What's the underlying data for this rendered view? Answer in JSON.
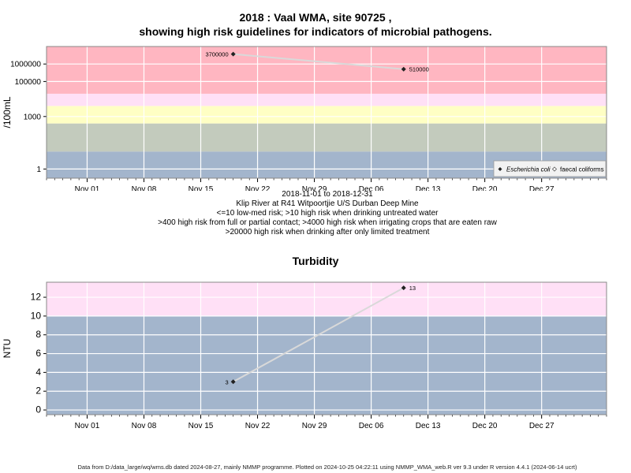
{
  "header": {
    "title_line1": "2018 : Vaal WMA, site 90725 ,",
    "title_line2": "showing high risk guidelines for indicators of microbial pathogens."
  },
  "info": {
    "date_range": "2018-11-01 to 2018-12-31",
    "site_name": "Klip River at R41 Witpoortjie U/S Durban Deep Mine",
    "guideline_1": "<=10 low-med risk; >10 high risk when drinking untreated water",
    "guideline_2": ">400 high risk from full or partial contact; >4000 high risk when irrigating crops that are eaten raw",
    "guideline_3": ">20000 high risk when drinking after only limited treatment"
  },
  "footer": {
    "text": "Data from D:/data_large/wq/wms.db dated 2024-08-27, mainly NMMP programme. Plotted on 2024-10-25 04:22:11 using NMMP_WMA_web.R ver 9.3 under R version 4.4.1 (2024-06-14 ucrt)"
  },
  "colors": {
    "band_red": "#ffb6c1",
    "band_pink": "#ffe0f6",
    "band_yellow": "#ffffc4",
    "band_sage": "#c3cbbd",
    "band_blue": "#a3b5cc",
    "grid": "#ffffff",
    "line": "#d9d9d9",
    "point": "#222222"
  },
  "chart_data": [
    {
      "type": "line",
      "ylabel": "/100mL",
      "y_scale": "log",
      "ylim": [
        0.3,
        10000000
      ],
      "xlim": [
        "2018-10-27",
        "2019-01-04"
      ],
      "x_tick_labels": [
        "Nov 01",
        "Nov 08",
        "Nov 15",
        "Nov 22",
        "Nov 29",
        "Dec 06",
        "Dec 13",
        "Dec 20",
        "Dec 27"
      ],
      "x_ticks": [
        "2018-11-01",
        "2018-11-08",
        "2018-11-15",
        "2018-11-22",
        "2018-11-29",
        "2018-12-06",
        "2018-12-13",
        "2018-12-20",
        "2018-12-27"
      ],
      "y_ticks": [
        1,
        1000,
        100000,
        1000000
      ],
      "y_tick_labels": [
        "1",
        "1000",
        "100000",
        "1000000"
      ],
      "grid": true,
      "legend_position": "bottom-right",
      "legend": [
        "Escherichia coli",
        "faecal coliforms"
      ],
      "bands": [
        {
          "from": 0.3,
          "to": 10,
          "color": "band_blue"
        },
        {
          "from": 10,
          "to": 400,
          "color": "band_sage"
        },
        {
          "from": 400,
          "to": 4000,
          "color": "band_yellow"
        },
        {
          "from": 4000,
          "to": 20000,
          "color": "band_pink"
        },
        {
          "from": 20000,
          "to": 10000000,
          "color": "band_red"
        }
      ],
      "series": [
        {
          "name": "Escherichia coli",
          "x": [
            "2018-11-19",
            "2018-12-10"
          ],
          "y": [
            3700000,
            510000
          ],
          "labels": [
            "3700000",
            "510000"
          ]
        }
      ]
    },
    {
      "type": "line",
      "title": "Turbidity",
      "ylabel": "NTU",
      "y_scale": "linear",
      "ylim": [
        -0.5,
        13.6
      ],
      "xlim": [
        "2018-10-27",
        "2019-01-04"
      ],
      "x_tick_labels": [
        "Nov 01",
        "Nov 08",
        "Nov 15",
        "Nov 22",
        "Nov 29",
        "Dec 06",
        "Dec 13",
        "Dec 20",
        "Dec 27"
      ],
      "x_ticks": [
        "2018-11-01",
        "2018-11-08",
        "2018-11-15",
        "2018-11-22",
        "2018-11-29",
        "2018-12-06",
        "2018-12-13",
        "2018-12-20",
        "2018-12-27"
      ],
      "y_ticks": [
        0,
        2,
        4,
        6,
        8,
        10,
        12
      ],
      "y_tick_labels": [
        "0",
        "2",
        "4",
        "6",
        "8",
        "10",
        "12"
      ],
      "grid": true,
      "bands": [
        {
          "from": -0.5,
          "to": 10,
          "color": "band_blue"
        },
        {
          "from": 10,
          "to": 13.6,
          "color": "band_pink"
        }
      ],
      "series": [
        {
          "x": [
            "2018-11-19",
            "2018-12-10"
          ],
          "y": [
            3,
            13
          ],
          "labels": [
            "3",
            "13"
          ]
        }
      ]
    }
  ]
}
